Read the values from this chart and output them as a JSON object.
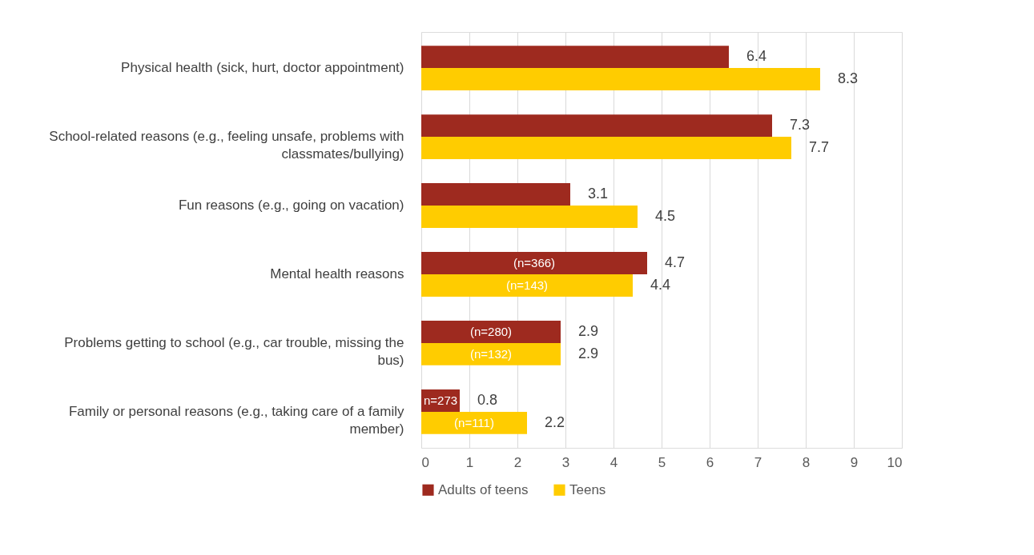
{
  "chart_data": {
    "type": "bar",
    "orientation": "horizontal",
    "categories": [
      "Physical health (sick, hurt, doctor appointment)",
      "School-related reasons (e.g., feeling unsafe, problems with classmates/bullying)",
      "Fun reasons (e.g., going on vacation)",
      "Mental health reasons",
      "Problems getting to school (e.g., car trouble, missing the bus)",
      "Family or personal reasons (e.g., taking care of a family member)"
    ],
    "series": [
      {
        "name": "Adults of teens",
        "color": "#9e2a1f",
        "values": [
          6.4,
          7.3,
          3.1,
          4.7,
          2.9,
          0.8
        ]
      },
      {
        "name": "Teens",
        "color": "#ffcc00",
        "values": [
          8.3,
          7.7,
          4.5,
          4.4,
          2.9,
          2.2
        ]
      }
    ],
    "data_labels": true,
    "annotations": [
      "(n=366)",
      "(n=143)",
      "(n=280)",
      "(n=132)",
      "n=273",
      "(n=111)"
    ],
    "xlim": [
      0,
      10
    ],
    "xticks": [
      0,
      1,
      2,
      3,
      4,
      5,
      6,
      7,
      8,
      9,
      10
    ],
    "grid": "x",
    "legend": "bottom"
  }
}
